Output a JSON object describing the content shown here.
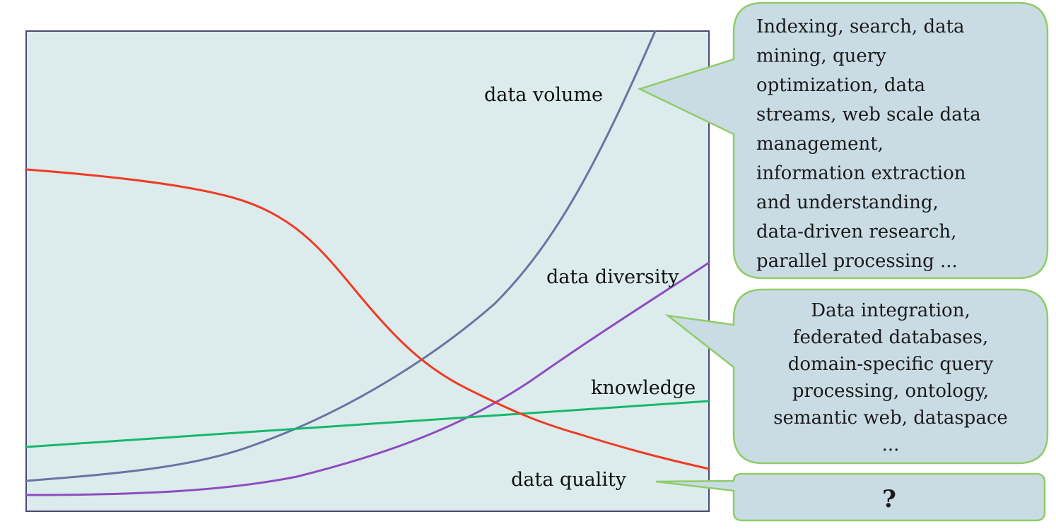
{
  "colors": {
    "plot_background": "#dcecec",
    "plot_border": "#4a4a72",
    "bubble_fill": "#c9dce4",
    "bubble_border": "#8fcc68",
    "data_volume": "#6a73a3",
    "data_diversity": "#8e4cc2",
    "knowledge": "#16b86a",
    "data_quality": "#f13a24"
  },
  "chart_data": {
    "type": "line",
    "title": "",
    "xlabel": "",
    "ylabel": "",
    "grid": false,
    "series": [
      {
        "name": "data volume",
        "color": "#6a73a3"
      },
      {
        "name": "data diversity",
        "color": "#8e4cc2"
      },
      {
        "name": "knowledge",
        "color": "#16b86a"
      },
      {
        "name": "data quality",
        "color": "#f13a24"
      }
    ]
  },
  "labels": {
    "data_volume": "data volume",
    "data_diversity": "data diversity",
    "knowledge": "knowledge",
    "data_quality": "data quality"
  },
  "bubbles": {
    "volume": {
      "lines": [
        "Indexing, search, data",
        "mining, query",
        "optimization, data",
        "streams, web scale data",
        "management,",
        "information extraction",
        "and understanding,",
        "data-driven research,",
        "parallel processing ..."
      ]
    },
    "diversity": {
      "lines": [
        "Data integration,",
        "federated databases,",
        "domain-specific query",
        "processing, ontology,",
        "semantic web, dataspace",
        "..."
      ]
    },
    "quality": {
      "text": "?"
    }
  }
}
